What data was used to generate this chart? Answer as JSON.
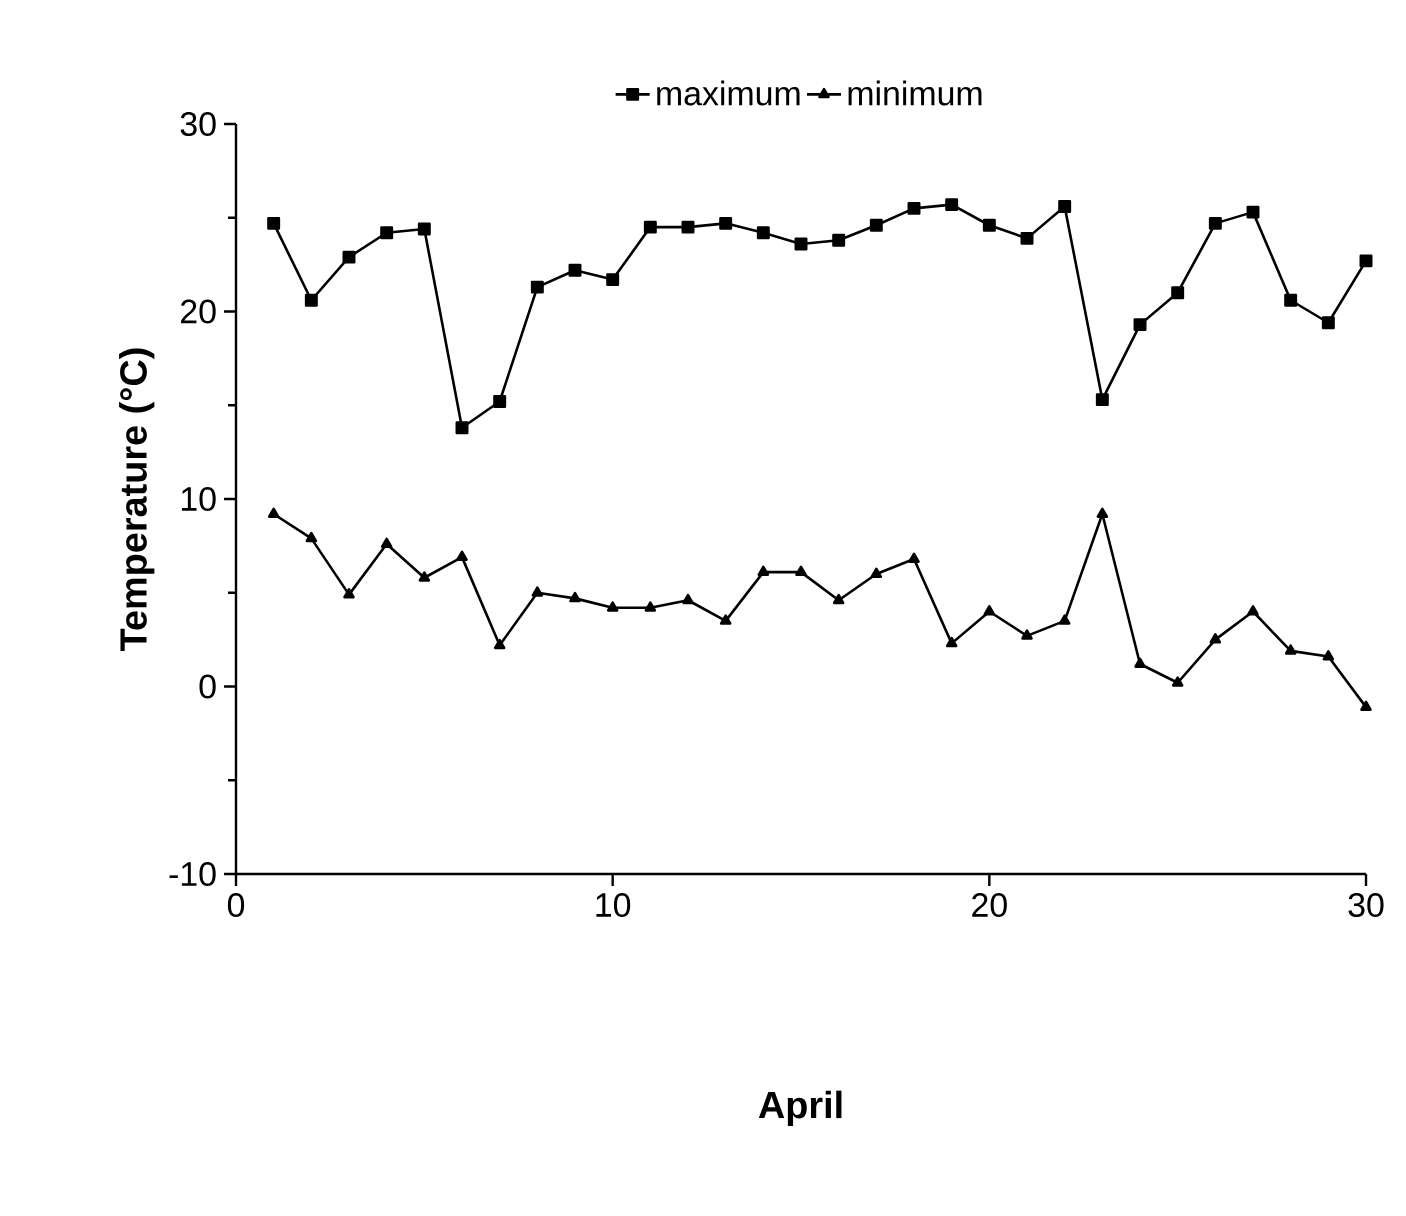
{
  "chart_data": {
    "type": "line",
    "xlabel": "April",
    "ylabel": "Temperature (°C)",
    "x": [
      1,
      2,
      3,
      4,
      5,
      6,
      7,
      8,
      9,
      10,
      11,
      12,
      13,
      14,
      15,
      16,
      17,
      18,
      19,
      20,
      21,
      22,
      23,
      24,
      25,
      26,
      27,
      28,
      29,
      30
    ],
    "series": [
      {
        "name": "maximum",
        "color": "#000000",
        "marker": "square",
        "values": [
          24.7,
          20.6,
          22.9,
          24.2,
          24.4,
          13.8,
          15.2,
          21.3,
          22.2,
          21.7,
          24.5,
          24.5,
          24.7,
          24.2,
          23.6,
          23.8,
          24.6,
          25.5,
          25.7,
          24.6,
          23.9,
          25.6,
          15.3,
          19.3,
          21.0,
          24.7,
          25.3,
          20.6,
          19.4,
          22.7
        ]
      },
      {
        "name": "minimum",
        "color": "#000000",
        "marker": "triangle",
        "values": [
          9.2,
          7.9,
          4.9,
          7.6,
          5.8,
          6.9,
          2.2,
          5.0,
          4.7,
          4.2,
          4.2,
          4.6,
          3.5,
          6.1,
          6.1,
          4.6,
          6.0,
          6.8,
          2.3,
          4.0,
          2.7,
          3.5,
          9.2,
          1.2,
          0.2,
          2.5,
          4.0,
          1.9,
          1.6,
          -1.1
        ]
      }
    ],
    "xlim": [
      0,
      30
    ],
    "xticks": [
      0,
      10,
      20,
      30
    ],
    "ylim": [
      -10,
      30
    ],
    "yticks": [
      -10,
      0,
      10,
      20,
      30
    ],
    "grid": false,
    "legend": "top",
    "line_style": "solid"
  }
}
